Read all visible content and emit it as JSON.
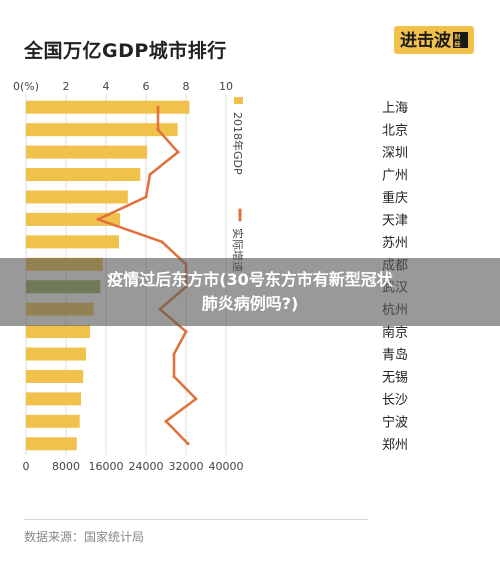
{
  "title": "全国万亿GDP城市排行",
  "logo_text": "进击波财经",
  "overlay_text": "疫情过后东方市(30号东方市有新型冠状肺炎病例吗?)",
  "source": "数据来源：国家统计局",
  "colors": {
    "bar": "#f0c14b",
    "bar_highlight": "#8fae52",
    "line": "#e0713a",
    "grid": "#dddddd",
    "logo_bg": "#f0c14b"
  },
  "chart_data": {
    "type": "bar",
    "orientation": "horizontal",
    "categories": [
      "上海",
      "北京",
      "深圳",
      "广州",
      "重庆",
      "天津",
      "苏州",
      "成都",
      "武汉",
      "杭州",
      "南京",
      "青岛",
      "无锡",
      "长沙",
      "宁波",
      "郑州"
    ],
    "highlight_category": "武汉",
    "top_axis": {
      "ticks": [
        0,
        2,
        4,
        6,
        8,
        10
      ],
      "tick_labels": [
        "0(%)",
        "2",
        "4",
        "6",
        "8",
        "10"
      ],
      "range": [
        0,
        10
      ]
    },
    "bottom_axis": {
      "ticks": [
        0,
        8000,
        16000,
        24000,
        32000,
        40000
      ],
      "tick_labels": [
        "0",
        "8000",
        "16000",
        "24000",
        "32000",
        "40000"
      ],
      "range": [
        0,
        40000
      ]
    },
    "series": [
      {
        "name": "2018年GDP",
        "type": "bar",
        "axis": "bottom",
        "values": [
          32680,
          30320,
          24222,
          22859,
          20363,
          18810,
          18597,
          15343,
          14847,
          13509,
          12820,
          12002,
          11439,
          11003,
          10746,
          10143
        ]
      },
      {
        "name": "实际增速",
        "type": "line",
        "axis": "top",
        "values": [
          6.6,
          6.6,
          7.6,
          6.2,
          6.0,
          3.6,
          6.8,
          8.0,
          8.0,
          6.7,
          8.0,
          7.4,
          7.4,
          8.5,
          7.0,
          8.1
        ]
      }
    ],
    "legend": [
      {
        "label": "2018年GDP"
      },
      {
        "label": "实际增速"
      }
    ],
    "legend_position": "right, vertical"
  }
}
